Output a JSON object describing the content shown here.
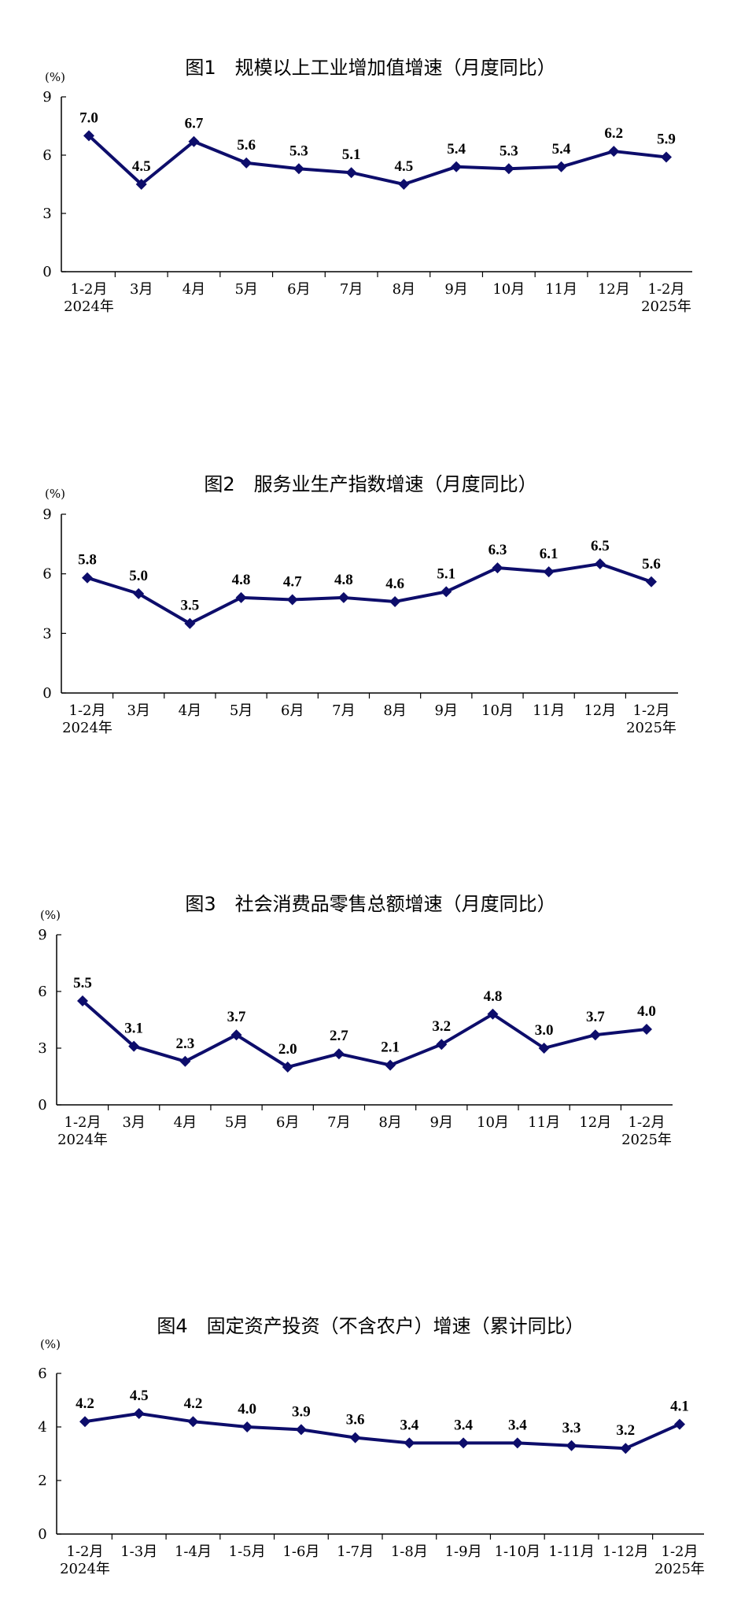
{
  "colors": {
    "line": "#0d0d6b",
    "axis": "#000000"
  },
  "chart_data": [
    {
      "type": "line",
      "title": "图1　规模以上工业增加值增速（月度同比）",
      "unit": "(%)",
      "categories": [
        "1-2月\n2024年",
        "3月",
        "4月",
        "5月",
        "6月",
        "7月",
        "8月",
        "9月",
        "10月",
        "11月",
        "12月",
        "1-2月\n2025年"
      ],
      "values": [
        7.0,
        4.5,
        6.7,
        5.6,
        5.3,
        5.1,
        4.5,
        5.4,
        5.3,
        5.4,
        6.2,
        5.9
      ],
      "ylim": [
        0,
        9
      ],
      "yticks": [
        "0",
        "3",
        "6",
        "9"
      ]
    },
    {
      "type": "line",
      "title": "图2　服务业生产指数增速（月度同比）",
      "unit": "(%)",
      "categories": [
        "1-2月\n2024年",
        "3月",
        "4月",
        "5月",
        "6月",
        "7月",
        "8月",
        "9月",
        "10月",
        "11月",
        "12月",
        "1-2月\n2025年"
      ],
      "values": [
        5.8,
        5.0,
        3.5,
        4.8,
        4.7,
        4.8,
        4.6,
        5.1,
        6.3,
        6.1,
        6.5,
        5.6
      ],
      "ylim": [
        0,
        9
      ],
      "yticks": [
        "0",
        "3",
        "6",
        "9"
      ]
    },
    {
      "type": "line",
      "title": "图3　社会消费品零售总额增速（月度同比）",
      "unit": "(%)",
      "categories": [
        "1-2月\n2024年",
        "3月",
        "4月",
        "5月",
        "6月",
        "7月",
        "8月",
        "9月",
        "10月",
        "11月",
        "12月",
        "1-2月\n2025年"
      ],
      "values": [
        5.5,
        3.1,
        2.3,
        3.7,
        2.0,
        2.7,
        2.1,
        3.2,
        4.8,
        3.0,
        3.7,
        4.0
      ],
      "ylim": [
        0,
        9
      ],
      "yticks": [
        "0",
        "3",
        "6",
        "9"
      ]
    },
    {
      "type": "line",
      "title": "图4　固定资产投资（不含农户）增速（累计同比）",
      "unit": "(%)",
      "categories": [
        "1-2月\n2024年",
        "1-3月",
        "1-4月",
        "1-5月",
        "1-6月",
        "1-7月",
        "1-8月",
        "1-9月",
        "1-10月",
        "1-11月",
        "1-12月",
        "1-2月\n2025年"
      ],
      "values": [
        4.2,
        4.5,
        4.2,
        4.0,
        3.9,
        3.6,
        3.4,
        3.4,
        3.4,
        3.3,
        3.2,
        4.1
      ],
      "ylim": [
        0,
        6
      ],
      "yticks": [
        "0",
        "2",
        "4",
        "6"
      ]
    }
  ]
}
